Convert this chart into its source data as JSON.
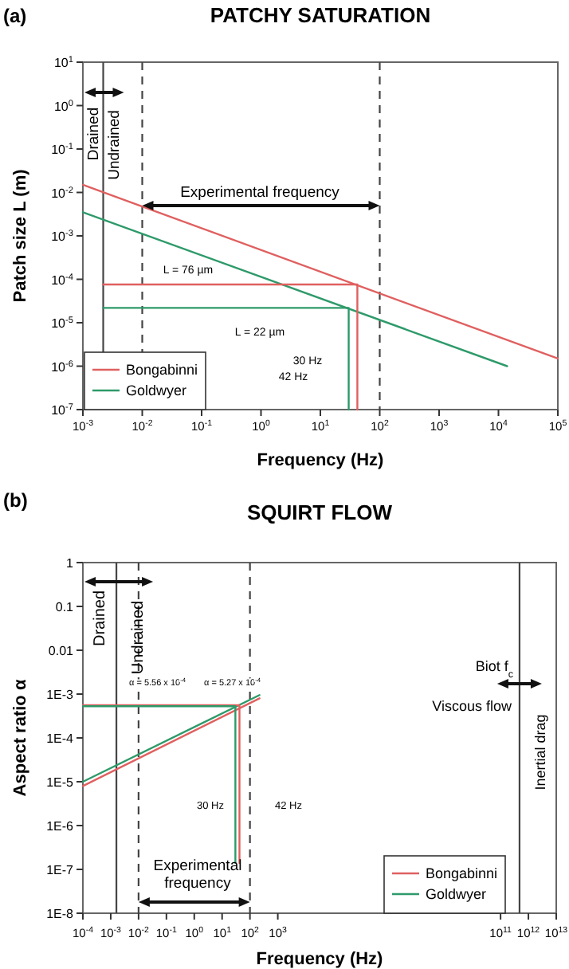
{
  "chart_data": [
    {
      "type": "line",
      "title": "PATCHY SATURATION",
      "xlabel": "Frequency (Hz)",
      "ylabel": "Patch size L (m)",
      "log": "xy",
      "legend": "bottom left",
      "xlim": [
        0.001,
        100000
      ],
      "ylim": [
        1e-07,
        10
      ],
      "xticks": [
        {
          "value": 0.001,
          "label": "10$^{-3}$"
        },
        {
          "value": 0.01,
          "label": "10$^{-2}$"
        },
        {
          "value": 0.1,
          "label": "10$^{-1}$"
        },
        {
          "value": 1,
          "label": "10$^{0}$"
        },
        {
          "value": 10,
          "label": "10$^{1}$"
        },
        {
          "value": 100,
          "label": "10$^{2}$"
        },
        {
          "value": 1000,
          "label": "10$^{3}$"
        },
        {
          "value": 10000,
          "label": "10$^{4}$"
        },
        {
          "value": 100000,
          "label": "10$^{5}$"
        }
      ],
      "yticks": [
        {
          "value": 1e-07,
          "label": "10$^{-7}$"
        },
        {
          "value": 1e-06,
          "label": "10$^{-6}$"
        },
        {
          "value": 1e-05,
          "label": "10$^{-5}$"
        },
        {
          "value": 0.0001,
          "label": "10$^{-4}$"
        },
        {
          "value": 0.001,
          "label": "10$^{-3}$"
        },
        {
          "value": 0.01,
          "label": "10$^{-2}$"
        },
        {
          "value": 0.1,
          "label": "10$^{-1}$"
        },
        {
          "value": 1,
          "label": "10$^{0}$"
        },
        {
          "value": 10,
          "label": "10$^{1}$"
        }
      ],
      "series": [
        {
          "name": "Bongabinni",
          "color": "#e06060",
          "x": [
            0.001,
            100000
          ],
          "values": [
            0.015,
            1.5e-06
          ]
        },
        {
          "name": "Goldwyer",
          "color": "#2e9a6a",
          "x": [
            0.001,
            14000
          ],
          "values": [
            0.0035,
            1e-06
          ]
        },
        {
          "color": "#e06060",
          "x": [
            0.0022,
            42,
            42
          ],
          "values": [
            7.6e-05,
            7.6e-05,
            1e-07
          ]
        },
        {
          "color": "#2e9a6a",
          "x": [
            0.0022,
            30,
            30
          ],
          "values": [
            2.2e-05,
            2.2e-05,
            1e-07
          ]
        }
      ],
      "ref_lines": [
        {
          "axis": "x",
          "value": 0.0022,
          "color": "#444444",
          "line_style": "solid"
        },
        {
          "axis": "x",
          "value": 0.01,
          "color": "#444444",
          "line_style": "dashed"
        },
        {
          "axis": "x",
          "value": 100,
          "color": "#444444",
          "line_style": "dashed"
        }
      ],
      "annotations": [
        "(a)",
        "Drained",
        "Undrained",
        "Experimental frequency",
        "L = 76 µm",
        "L = 22 µm",
        "30 Hz",
        "42 Hz"
      ]
    },
    {
      "type": "line",
      "title": "SQUIRT FLOW",
      "xlabel": "Frequency (Hz)",
      "ylabel": "Aspect ratio α",
      "log": "xy",
      "legend": "bottom right",
      "xlim": [
        0.0001,
        10000000000000.0
      ],
      "ylim": [
        1e-08,
        1
      ],
      "xticks": [
        {
          "value": 0.0001,
          "label": "10$^{-4}$"
        },
        {
          "value": 0.001,
          "label": "10$^{-3}$"
        },
        {
          "value": 0.01,
          "label": "10$^{-2}$"
        },
        {
          "value": 0.1,
          "label": "10$^{-1}$"
        },
        {
          "value": 1,
          "label": "10$^{0}$"
        },
        {
          "value": 10,
          "label": "10$^{1}$"
        },
        {
          "value": 100,
          "label": "10$^{2}$"
        },
        {
          "value": 1000,
          "label": "10$^{3}$"
        },
        {
          "value": 100000000000.0,
          "label": "10$^{11}$"
        },
        {
          "value": 1000000000000.0,
          "label": "10$^{12}$"
        },
        {
          "value": 10000000000000.0,
          "label": "10$^{13}$"
        }
      ],
      "yticks": [
        {
          "value": 1e-08,
          "label": "1E-8"
        },
        {
          "value": 1e-07,
          "label": "1E-7"
        },
        {
          "value": 1e-06,
          "label": "1E-6"
        },
        {
          "value": 1e-05,
          "label": "1E-5"
        },
        {
          "value": 0.0001,
          "label": "1E-4"
        },
        {
          "value": 0.001,
          "label": "1E-3"
        },
        0.01,
        0.1,
        1
      ],
      "series": [
        {
          "name": "Bongabinni",
          "color": "#e06060",
          "x": [
            0.0001,
            220
          ],
          "values": [
            8e-06,
            0.0008
          ]
        },
        {
          "name": "Goldwyer",
          "color": "#2e9a6a",
          "x": [
            0.0001,
            220
          ],
          "values": [
            1e-05,
            0.00095
          ]
        },
        {
          "color": "#e06060",
          "x": [
            0.0001,
            42,
            42
          ],
          "values": [
            0.000556,
            0.000556,
            1.4e-07
          ]
        },
        {
          "color": "#2e9a6a",
          "x": [
            0.0001,
            30,
            30
          ],
          "values": [
            0.000527,
            0.000527,
            1.4e-07
          ]
        }
      ],
      "ref_lines": [
        {
          "axis": "x",
          "value": 0.0016,
          "color": "#444444",
          "line_style": "solid"
        },
        {
          "axis": "x",
          "value": 0.01,
          "color": "#444444",
          "line_style": "dashed"
        },
        {
          "axis": "x",
          "value": 100,
          "color": "#444444",
          "line_style": "dashed"
        },
        {
          "axis": "x",
          "value": 480000000000.0,
          "color": "#444444",
          "line_style": "solid"
        }
      ],
      "annotations": [
        "(b)",
        "Drained",
        "Undrained",
        "α = 5.56 x 10$^{-4}$",
        "α = 5.27 x 10$^{-4}$",
        "30 Hz",
        "42 Hz",
        "Experimental frequency",
        "Biot f$_{c}$",
        "Viscous flow",
        "Inertial drag"
      ]
    }
  ]
}
